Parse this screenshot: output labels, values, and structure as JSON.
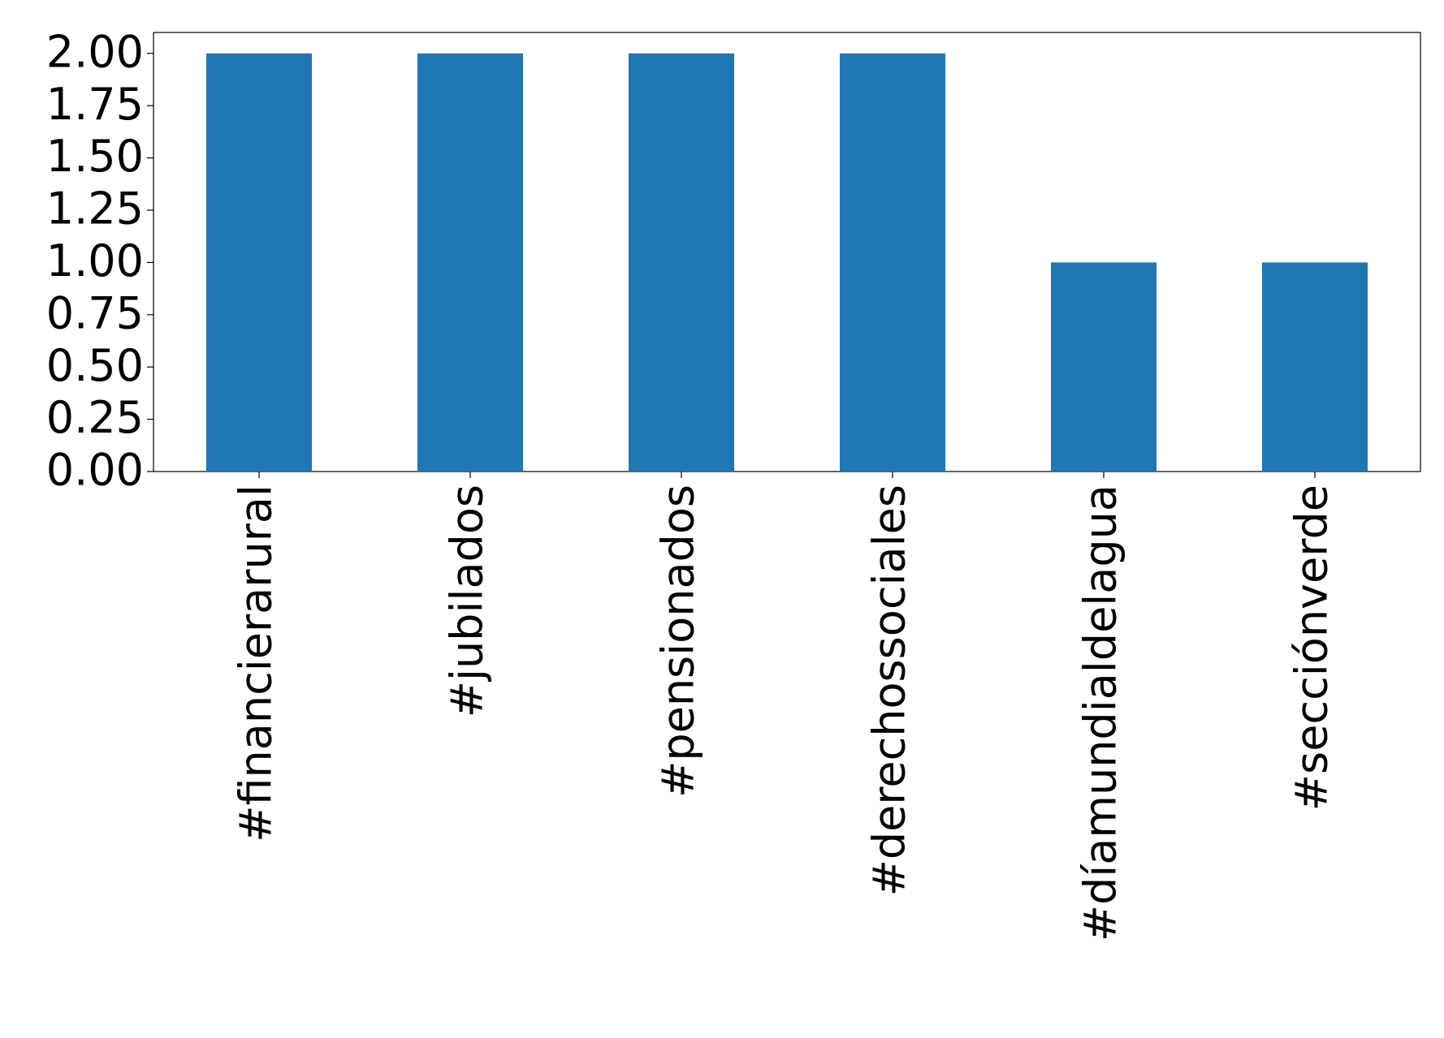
{
  "chart_data": {
    "type": "bar",
    "categories": [
      "#financierarural",
      "#jubilados",
      "#pensionados",
      "#derechossociales",
      "#díamundialdelagua",
      "#secciónverde"
    ],
    "values": [
      2,
      2,
      2,
      2,
      1,
      1
    ],
    "color": "#1f77b4",
    "ylim": [
      0,
      2.1
    ],
    "yticks": [
      {
        "value": 0,
        "label": "0.00"
      },
      0.25,
      {
        "value": 0.5,
        "label": "0.50"
      },
      0.75,
      {
        "value": 1,
        "label": "1.00"
      },
      1.25,
      {
        "value": 1.5,
        "label": "1.50"
      },
      1.75,
      {
        "value": 2,
        "label": "2.00"
      }
    ],
    "grid": false
  }
}
